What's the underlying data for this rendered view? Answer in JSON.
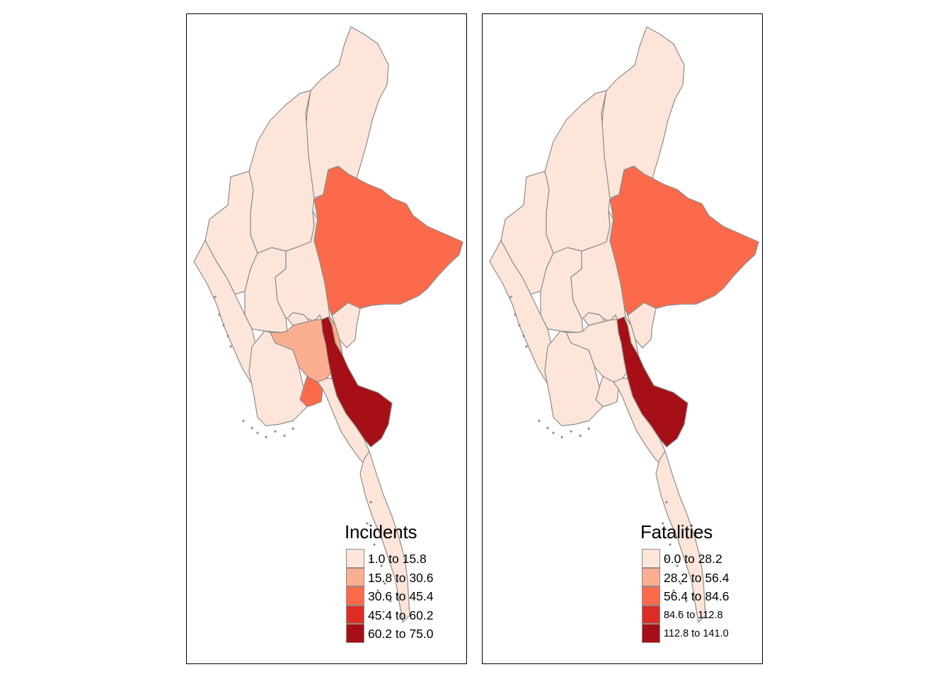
{
  "maps": [
    {
      "id": "left",
      "legend_title": "Incidents",
      "legend_items": [
        {
          "label": "1.0 to 15.8",
          "color": "#fee5d9"
        },
        {
          "label": "15.8 to 30.6",
          "color": "#fcae91"
        },
        {
          "label": "30.6 to 45.4",
          "color": "#fb6a4a"
        },
        {
          "label": "45.4 to 60.2",
          "color": "#de2d26"
        },
        {
          "label": "60.2 to 75.0",
          "color": "#a50f15"
        }
      ],
      "regions": {
        "kachin": 1,
        "sagaing": 1,
        "chin": 1,
        "rakhine": 1,
        "magway": 1,
        "mandalay": 1,
        "nay_pyi_taw": 1,
        "shan": 3,
        "kayah": 1,
        "bago": 2,
        "yangon": 3,
        "ayeyarwady": 1,
        "kayin": 5,
        "mon": 1,
        "tanintharyi": 1
      }
    },
    {
      "id": "right",
      "legend_title": "Fatalities",
      "legend_items": [
        {
          "label": "0.0 to 28.2",
          "color": "#fee5d9"
        },
        {
          "label": "28.2 to 56.4",
          "color": "#fcae91"
        },
        {
          "label": "56.4 to 84.6",
          "color": "#fb6a4a"
        },
        {
          "label": "84.6 to 112.8",
          "color": "#de2d26"
        },
        {
          "label": "112.8 to 141.0",
          "color": "#a50f15"
        }
      ],
      "regions": {
        "kachin": 1,
        "sagaing": 1,
        "chin": 1,
        "rakhine": 1,
        "magway": 1,
        "mandalay": 1,
        "nay_pyi_taw": 1,
        "shan": 3,
        "kayah": 1,
        "bago": 1,
        "yangon": 1,
        "ayeyarwady": 1,
        "kayin": 5,
        "mon": 1,
        "tanintharyi": 1
      }
    }
  ]
}
